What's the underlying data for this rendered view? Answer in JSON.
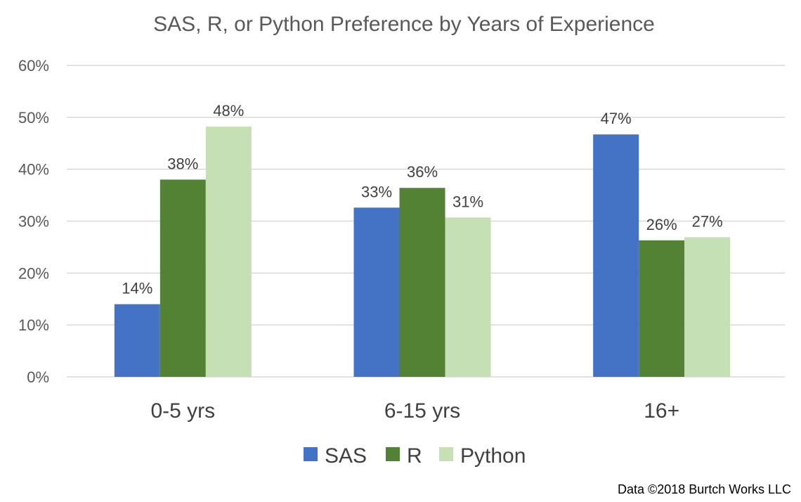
{
  "chart_data": {
    "type": "bar",
    "title": "SAS, R, or Python Preference by Years of Experience",
    "categories": [
      "0-5 yrs",
      "6-15 yrs",
      "16+"
    ],
    "series": [
      {
        "name": "SAS",
        "color": "#4472c4",
        "values": [
          14,
          32.6,
          46.7
        ],
        "labels": [
          "14%",
          "33%",
          "47%"
        ]
      },
      {
        "name": "R",
        "color": "#548235",
        "values": [
          38,
          36.4,
          26.3
        ],
        "labels": [
          "38%",
          "36%",
          "26%"
        ]
      },
      {
        "name": "Python",
        "color": "#c5e0b4",
        "values": [
          48.2,
          30.7,
          26.9
        ],
        "labels": [
          "48%",
          "31%",
          "27%"
        ]
      }
    ],
    "ylim": [
      0,
      60
    ],
    "ytick_values": [
      0,
      10,
      20,
      30,
      40,
      50,
      60
    ],
    "ytick_labels": [
      "0%",
      "10%",
      "20%",
      "30%",
      "40%",
      "50%",
      "60%"
    ],
    "xlabel": "",
    "ylabel": "",
    "grid": true,
    "legend_position": "bottom",
    "credit": "Data ©2018 Burtch Works LLC"
  }
}
